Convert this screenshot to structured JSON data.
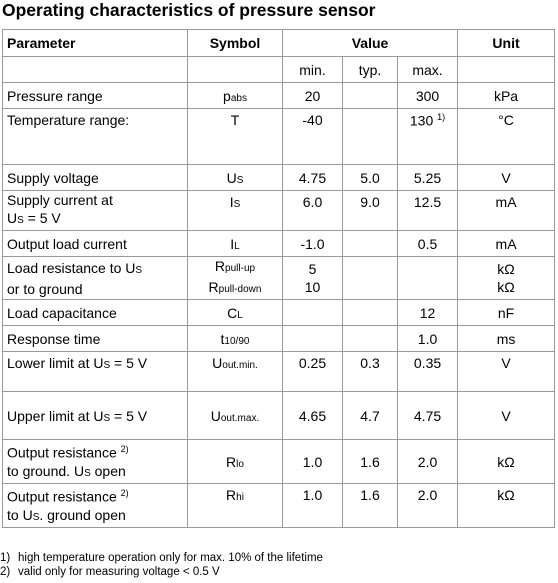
{
  "title": "Operating characteristics of pressure sensor",
  "header": {
    "parameter": "Parameter",
    "symbol": "Symbol",
    "value": "Value",
    "unit": "Unit",
    "min": "min.",
    "typ": "typ.",
    "max": "max."
  },
  "rows": [
    {
      "p1": "Pressure range",
      "s_main": "p",
      "s_sub": "abs",
      "min": "20",
      "typ": "",
      "max": "300",
      "max_fn": "",
      "unit": "kPa"
    },
    {
      "p1": "Temperature range:",
      "s_main": "T",
      "s_sub": "",
      "min": "-40",
      "typ": "",
      "max": "130",
      "max_fn": "1)",
      "unit": "°C"
    },
    {
      "p1": "Supply voltage",
      "s_main": "U",
      "s_sub": "S",
      "min": "4.75",
      "typ": "5.0",
      "max": "5.25",
      "max_fn": "",
      "unit": "V"
    },
    {
      "p1": "Supply current at",
      "p2_main": "U",
      "p2_sub": "S",
      "p2_rest": " = 5 V",
      "s_main": "I",
      "s_sub": "S",
      "min": "6.0",
      "typ": "9.0",
      "max": "12.5",
      "max_fn": "",
      "unit": "mA"
    },
    {
      "p1": "Output load current",
      "s_main": "I",
      "s_sub": "L",
      "min": "-1.0",
      "typ": "",
      "max": "0.5",
      "max_fn": "",
      "unit": "mA"
    },
    {
      "p1a": "Load resistance to U",
      "p1a_sub": "S",
      "p2": "or to ground",
      "s1_main": "R",
      "s1_sub": "pull-up",
      "s2_main": "R",
      "s2_sub": "pull-down",
      "min1": "5",
      "min2": "10",
      "unit1": "kΩ",
      "unit2": "kΩ"
    },
    {
      "p1": "Load capacitance",
      "s_main": "C",
      "s_sub": "L",
      "min": "",
      "typ": "",
      "max": "12",
      "max_fn": "",
      "unit": "nF"
    },
    {
      "p1": "Response time",
      "s_main": "t",
      "s_sub": "10/90",
      "min": "",
      "typ": "",
      "max": "1.0",
      "max_fn": "",
      "unit": "ms"
    },
    {
      "p1a": "Lower limit at U",
      "p1a_sub": "S",
      "p1b": " = 5 V",
      "s_main": "U",
      "s_sub": "out.min.",
      "min": "0.25",
      "typ": "0.3",
      "max": "0.35",
      "max_fn": "",
      "unit": "V"
    },
    {
      "p1a": "Upper limit at U",
      "p1a_sub": "S",
      "p1b": " = 5 V",
      "s_main": "U",
      "s_sub": "out.max.",
      "min": "4.65",
      "typ": "4.7",
      "max": "4.75",
      "max_fn": "",
      "unit": "V"
    },
    {
      "p1": "Output resistance",
      "p1_fn": "2)",
      "p2a": "to ground. U",
      "p2a_sub": "S",
      "p2b": " open",
      "s_main": "R",
      "s_sub": "lo",
      "min": "1.0",
      "typ": "1.6",
      "max": "2.0",
      "max_fn": "",
      "unit": "kΩ"
    },
    {
      "p1": "Output resistance",
      "p1_fn": "2)",
      "p2a": "to U",
      "p2a_sub": "S",
      "p2b": ". ground open",
      "s_main": "R",
      "s_sub": "hi",
      "min": "1.0",
      "typ": "1.6",
      "max": "2.0",
      "max_fn": "",
      "unit": "kΩ"
    }
  ],
  "footnotes": [
    {
      "num": "1)",
      "text": "high temperature operation only for max. 10% of the lifetime"
    },
    {
      "num": "2)",
      "text": "valid only for measuring voltage < 0.5 V"
    }
  ]
}
